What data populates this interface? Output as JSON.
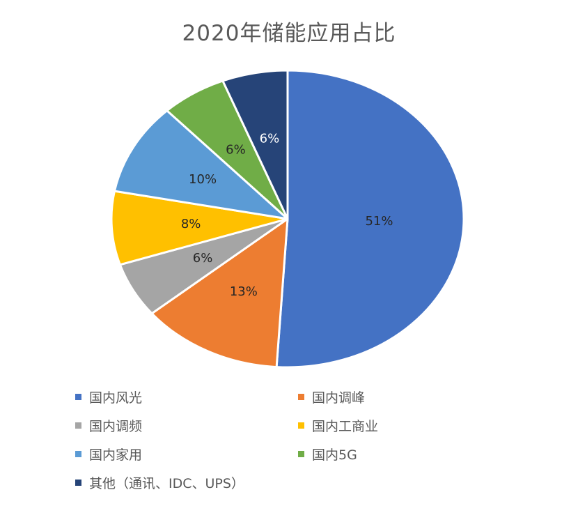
{
  "chart_data": {
    "type": "pie",
    "title": "2020年储能应用占比",
    "categories": [
      "国内风光",
      "国内调峰",
      "国内调频",
      "国内工商业",
      "国内家用",
      "国内5G",
      "其他（通讯、IDC、UPS）"
    ],
    "values": [
      51,
      13,
      6,
      8,
      10,
      6,
      6
    ],
    "data_labels": [
      "51%",
      "13%",
      "6%",
      "8%",
      "10%",
      "6%",
      "6%"
    ],
    "colors": [
      "#4472C4",
      "#ED7D31",
      "#A5A5A5",
      "#FFC000",
      "#5B9BD5",
      "#70AD47",
      "#264478"
    ],
    "label_colors": [
      "#262626",
      "#262626",
      "#262626",
      "#262626",
      "#262626",
      "#262626",
      "#ffffff"
    ],
    "legend_position": "bottom",
    "start_angle": "12 o'clock",
    "direction": "clockwise"
  }
}
